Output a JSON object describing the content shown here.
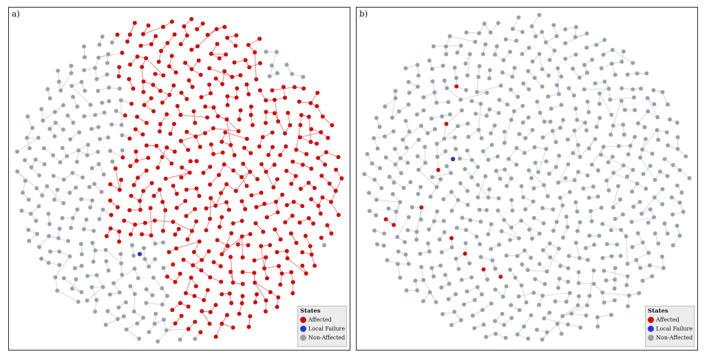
{
  "panels": [
    {
      "label": "a)",
      "legend": {
        "title": "States",
        "items": [
          {
            "label": "Affected",
            "color": "#d40000"
          },
          {
            "label": "Local Failure",
            "color": "#2a35d6"
          },
          {
            "label": "Non-Affected",
            "color": "#9aa0ab"
          }
        ]
      }
    },
    {
      "label": "b)",
      "legend": {
        "title": "States",
        "items": [
          {
            "label": "Affected",
            "color": "#d40000"
          },
          {
            "label": "Local Failure",
            "color": "#2a35d6"
          },
          {
            "label": "Non-Affected",
            "color": "#9aa0ab"
          }
        ]
      }
    }
  ],
  "colors": {
    "affected": "#d40000",
    "local_failure": "#2a35d6",
    "non_affected": "#9aa0ab",
    "edge": "#c8ccd2",
    "affected_edge": "#e06060"
  }
}
